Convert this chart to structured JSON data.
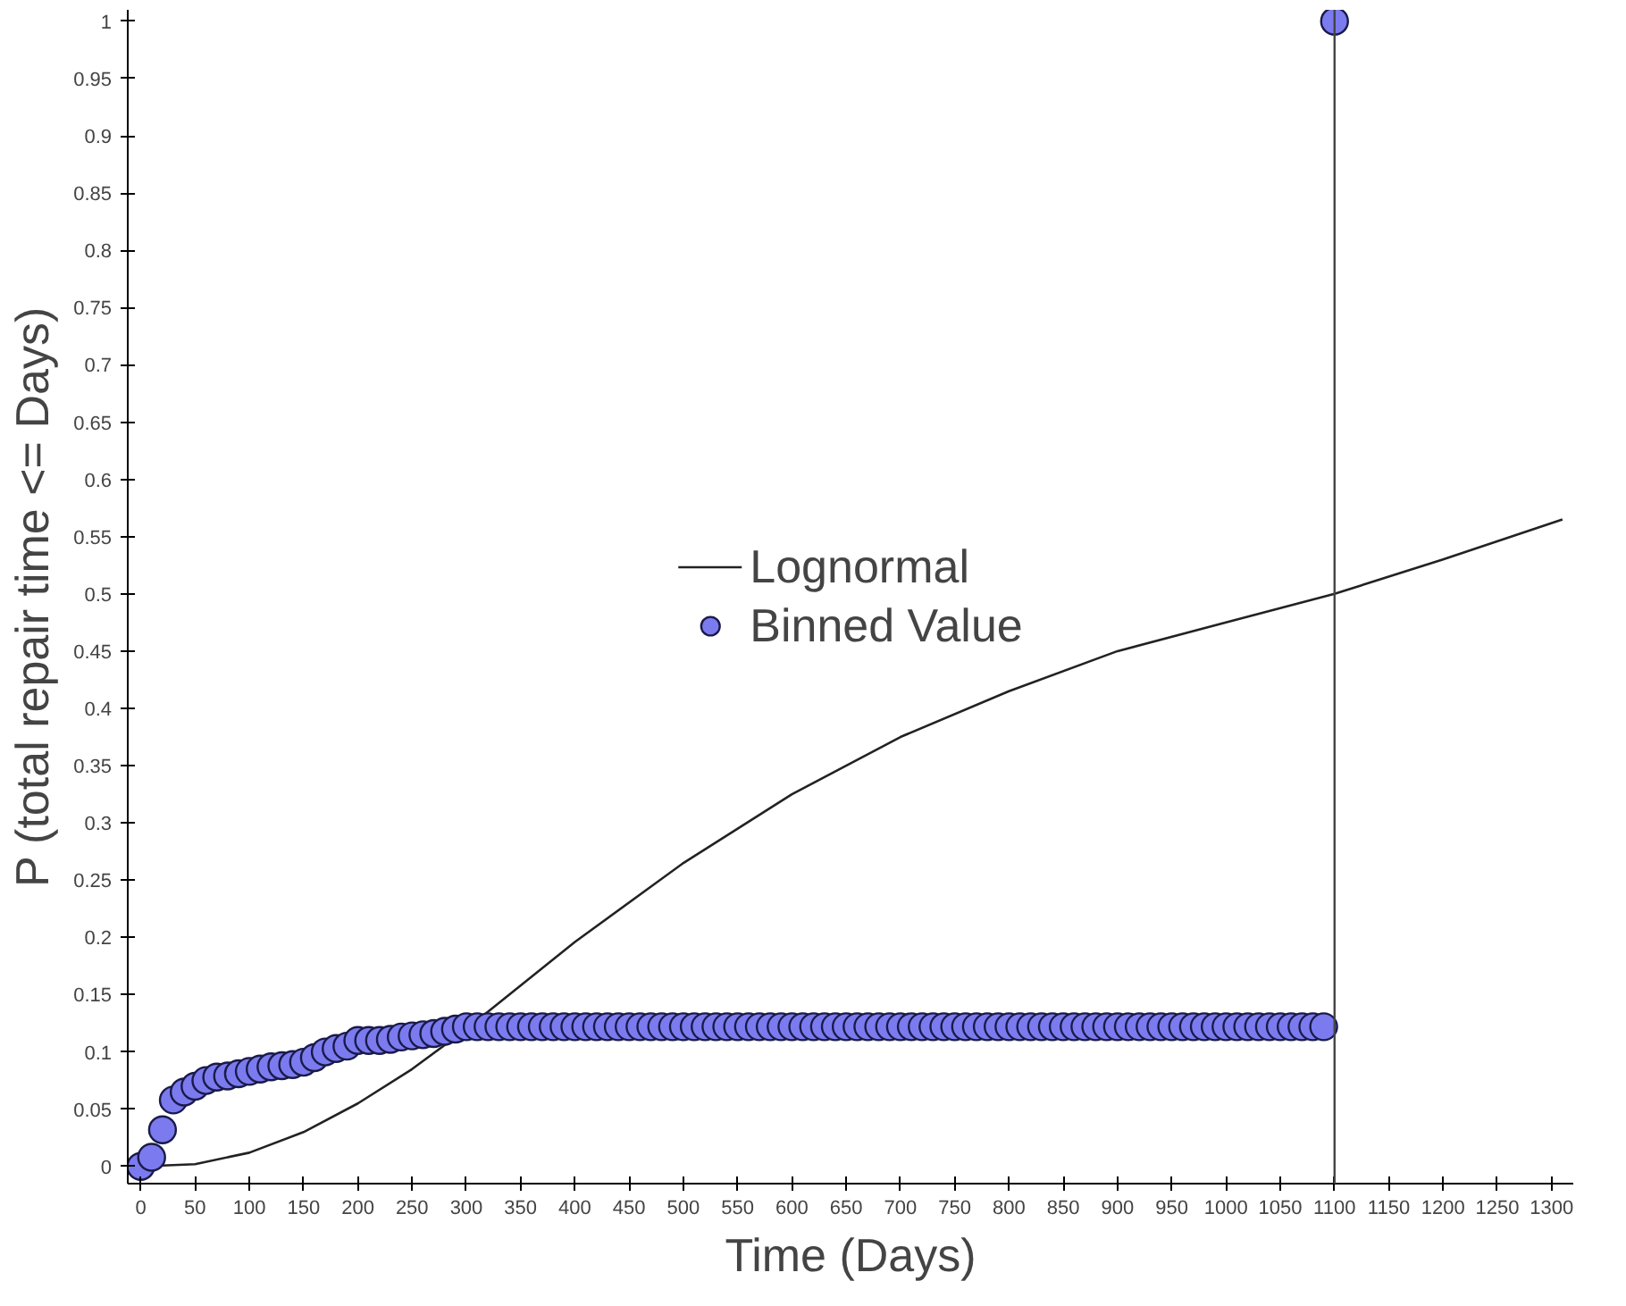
{
  "chart_data": {
    "type": "scatter",
    "xlabel": "Time (Days)",
    "ylabel": "P (total repair time <= Days)",
    "xlim": [
      -12,
      1320
    ],
    "ylim": [
      -0.015,
      1.01
    ],
    "xticks": [
      0,
      50,
      100,
      150,
      200,
      250,
      300,
      350,
      400,
      450,
      500,
      550,
      600,
      650,
      700,
      750,
      800,
      850,
      900,
      950,
      1000,
      1050,
      1100,
      1150,
      1200,
      1250,
      1300
    ],
    "yticks": [
      0,
      0.05,
      0.1,
      0.15,
      0.2,
      0.25,
      0.3,
      0.35,
      0.4,
      0.45,
      0.5,
      0.55,
      0.6,
      0.65,
      0.7,
      0.75,
      0.8,
      0.85,
      0.9,
      0.95,
      1
    ],
    "grid": false,
    "legend": "center",
    "marker": "circle",
    "series": [
      {
        "name": "Lognormal",
        "type": "line",
        "color": "#222222",
        "line_style": "solid",
        "marker": "none",
        "x": [
          0,
          50,
          100,
          150,
          200,
          250,
          300,
          350,
          400,
          500,
          600,
          700,
          800,
          900,
          1000,
          1100,
          1200,
          1310
        ],
        "values": [
          0,
          0.002,
          0.012,
          0.03,
          0.055,
          0.085,
          0.12,
          0.158,
          0.196,
          0.265,
          0.325,
          0.375,
          0.415,
          0.45,
          0.475,
          0.5,
          0.53,
          0.565
        ]
      },
      {
        "name": "Binned Value",
        "type": "scatter",
        "color": "#7b7bef",
        "x": [
          0,
          10,
          20,
          30,
          40,
          50,
          60,
          70,
          80,
          90,
          100,
          110,
          120,
          130,
          140,
          150,
          160,
          170,
          180,
          190,
          200,
          210,
          220,
          230,
          240,
          250,
          260,
          270,
          280,
          290,
          300,
          310,
          320,
          330,
          340,
          350,
          360,
          370,
          380,
          390,
          400,
          410,
          420,
          430,
          440,
          450,
          460,
          470,
          480,
          490,
          500,
          510,
          520,
          530,
          540,
          550,
          560,
          570,
          580,
          590,
          600,
          610,
          620,
          630,
          640,
          650,
          660,
          670,
          680,
          690,
          700,
          710,
          720,
          730,
          740,
          750,
          760,
          770,
          780,
          790,
          800,
          810,
          820,
          830,
          840,
          850,
          860,
          870,
          880,
          890,
          900,
          910,
          920,
          930,
          940,
          950,
          960,
          970,
          980,
          990,
          1000,
          1010,
          1020,
          1030,
          1040,
          1050,
          1060,
          1070,
          1080,
          1090,
          1100
        ],
        "values": [
          0,
          0.008,
          0.032,
          0.058,
          0.065,
          0.07,
          0.075,
          0.078,
          0.079,
          0.081,
          0.083,
          0.085,
          0.087,
          0.088,
          0.089,
          0.091,
          0.095,
          0.1,
          0.103,
          0.105,
          0.11,
          0.11,
          0.11,
          0.111,
          0.113,
          0.114,
          0.115,
          0.116,
          0.118,
          0.12,
          0.122,
          0.122,
          0.122,
          0.122,
          0.122,
          0.122,
          0.122,
          0.122,
          0.122,
          0.122,
          0.122,
          0.122,
          0.122,
          0.122,
          0.122,
          0.122,
          0.122,
          0.122,
          0.122,
          0.122,
          0.122,
          0.122,
          0.122,
          0.122,
          0.122,
          0.122,
          0.122,
          0.122,
          0.122,
          0.122,
          0.122,
          0.122,
          0.122,
          0.122,
          0.122,
          0.122,
          0.122,
          0.122,
          0.122,
          0.122,
          0.122,
          0.122,
          0.122,
          0.122,
          0.122,
          0.122,
          0.122,
          0.122,
          0.122,
          0.122,
          0.122,
          0.122,
          0.122,
          0.122,
          0.122,
          0.122,
          0.122,
          0.122,
          0.122,
          0.122,
          0.122,
          0.122,
          0.122,
          0.122,
          0.122,
          0.122,
          0.122,
          0.122,
          0.122,
          0.122,
          0.122,
          0.122,
          0.122,
          0.122,
          0.122,
          0.122,
          0.122,
          0.122,
          0.122,
          0.122,
          1.0
        ]
      }
    ],
    "ref_lines": [
      {
        "axis": "x",
        "value": 1100,
        "color": "#444444"
      }
    ]
  }
}
